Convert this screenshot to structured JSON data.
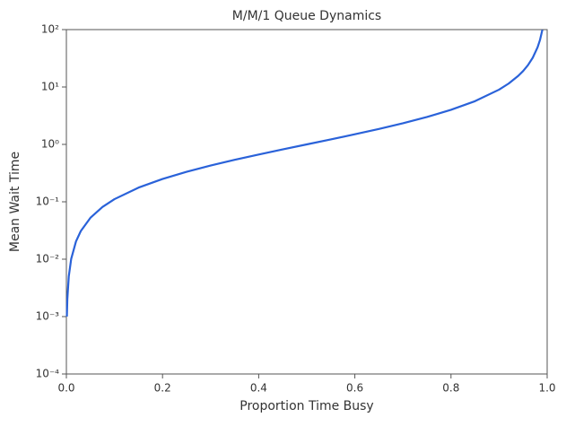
{
  "chart_data": {
    "type": "line",
    "title": "M/M/1 Queue Dynamics",
    "xlabel": "Proportion Time Busy",
    "ylabel": "Mean Wait Time",
    "x": [
      0.001,
      0.002,
      0.005,
      0.01,
      0.02,
      0.03,
      0.05,
      0.075,
      0.1,
      0.15,
      0.2,
      0.25,
      0.3,
      0.35,
      0.4,
      0.45,
      0.5,
      0.55,
      0.6,
      0.65,
      0.7,
      0.75,
      0.8,
      0.85,
      0.9,
      0.92,
      0.94,
      0.95,
      0.96,
      0.97,
      0.98,
      0.985,
      0.99
    ],
    "series": [
      {
        "color": "#2a62d9",
        "values": [
          0.001001,
          0.002004,
          0.005025,
          0.010101,
          0.020408,
          0.030928,
          0.052632,
          0.081081,
          0.111111,
          0.176471,
          0.25,
          0.333333,
          0.428571,
          0.538462,
          0.666667,
          0.818182,
          1,
          1.222222,
          1.5,
          1.857143,
          2.333333,
          3,
          4,
          5.666667,
          9,
          11.5,
          15.666667,
          19,
          24,
          32.333333,
          49,
          65.666667,
          99
        ]
      }
    ],
    "xlim": [
      0,
      1
    ],
    "xticks": [
      {
        "value": 0,
        "label": "0.0"
      },
      0.2,
      0.4,
      0.6,
      0.8,
      {
        "value": 1,
        "label": "1.0"
      }
    ],
    "ylim": [
      0.0001,
      100
    ],
    "yscale": "log",
    "yticks": [
      {
        "value": 0.0001,
        "label": "10⁻⁴"
      },
      {
        "value": 0.001,
        "label": "10⁻³"
      },
      {
        "value": 0.01,
        "label": "10⁻²"
      },
      {
        "value": 0.1,
        "label": "10⁻¹"
      },
      {
        "value": 1,
        "label": "10⁰"
      },
      {
        "value": 10,
        "label": "10¹"
      },
      {
        "value": 100,
        "label": "10²"
      }
    ],
    "grid": false
  }
}
